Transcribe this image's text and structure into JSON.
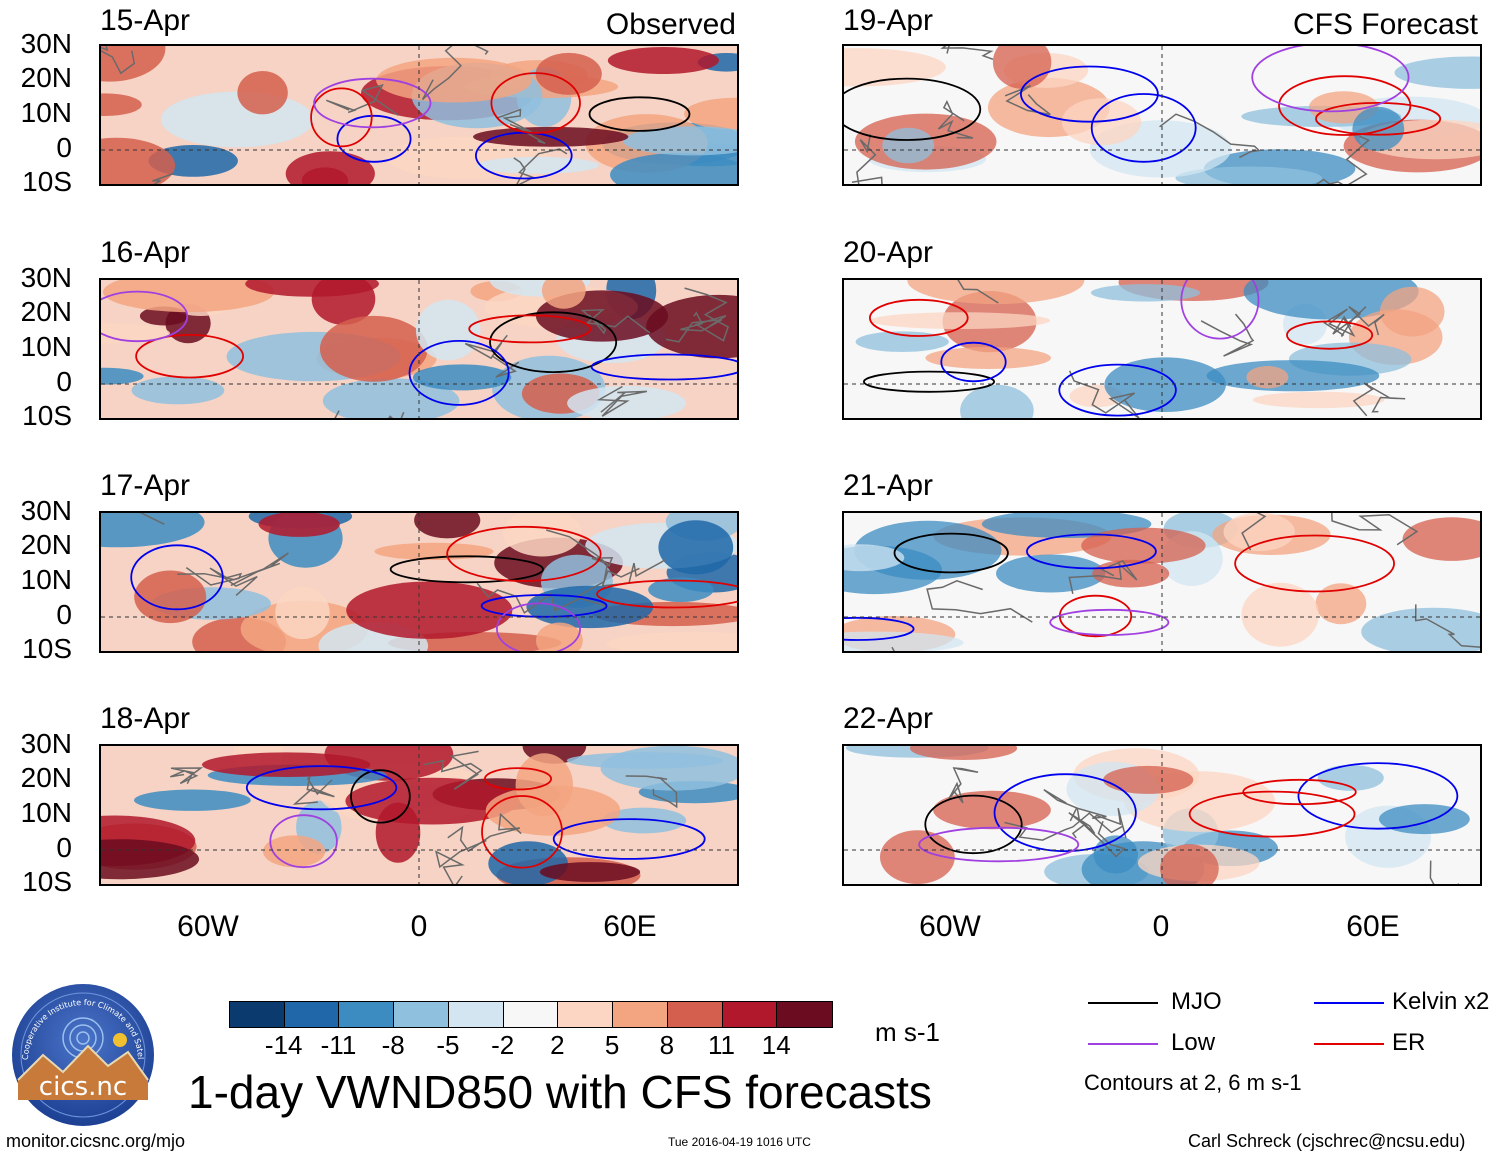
{
  "map": {
    "column_titles": [
      "Observed",
      "CFS Forecast"
    ],
    "observed_dates": [
      "15-Apr",
      "16-Apr",
      "17-Apr",
      "18-Apr"
    ],
    "forecast_dates": [
      "19-Apr",
      "20-Apr",
      "21-Apr",
      "22-Apr"
    ],
    "lat_labels": [
      "30N",
      "20N",
      "10N",
      "0",
      "10S"
    ],
    "lon_labels": [
      "60W",
      "0",
      "60E"
    ]
  },
  "colorbar": {
    "labels": [
      "-14",
      "-11",
      "-8",
      "-5",
      "-2",
      "2",
      "5",
      "8",
      "11",
      "14"
    ],
    "colors": [
      "#0b3b6e",
      "#1f67a8",
      "#3c8cc2",
      "#8fc0de",
      "#d2e5f1",
      "#f7f7f7",
      "#fcd6c2",
      "#f3a481",
      "#d55f4e",
      "#b2182b",
      "#6b0c20"
    ],
    "units": "m s-1"
  },
  "legend": {
    "items": [
      {
        "label": "MJO",
        "color": "#000000"
      },
      {
        "label": "Kelvin x2",
        "color": "#0000ee"
      },
      {
        "label": "Low",
        "color": "#a040e0"
      },
      {
        "label": "ER",
        "color": "#e00000"
      }
    ],
    "note": "Contours at 2, 6 m s-1"
  },
  "footer": {
    "title": "1-day VWND850 with CFS forecasts",
    "logo_text": "cics.nc",
    "logo_arc": "Cooperative Institute for Climate and Satellites",
    "url": "monitor.cicsnc.org/mjo",
    "timestamp": "Tue 2016-04-19 1016 UTC",
    "credit": "Carl Schreck (cjschrec@ncsu.edu)"
  }
}
